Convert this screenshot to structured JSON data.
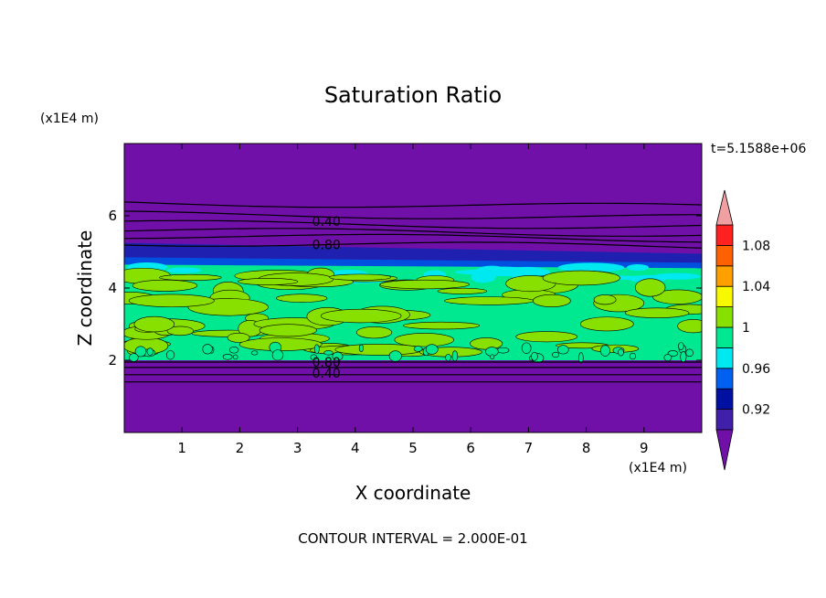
{
  "chart_data": {
    "type": "heatmap",
    "title": "Saturation Ratio",
    "xlabel": "X coordinate",
    "ylabel": "Z coordinate",
    "x_unit": "(x1E4 m)",
    "y_unit": "(x1E4 m)",
    "time_label": "t=5.1588e+06",
    "footer": "CONTOUR INTERVAL = 2.000E-01",
    "xlim": [
      0,
      10
    ],
    "ylim": [
      0,
      8
    ],
    "x_ticks": [
      1,
      2,
      3,
      4,
      5,
      6,
      7,
      8,
      9
    ],
    "y_ticks": [
      2,
      4,
      6
    ],
    "contour_labels": [
      {
        "text": "0.40",
        "x": 3.5,
        "y": 5.85
      },
      {
        "text": "0.80",
        "x": 3.5,
        "y": 5.2
      },
      {
        "text": "0.80",
        "x": 3.5,
        "y": 1.95
      },
      {
        "text": "0.40",
        "x": 3.5,
        "y": 1.65
      }
    ],
    "contour_lines_z": [
      1.4,
      1.6,
      1.8,
      1.95,
      5.25,
      5.45,
      5.6,
      5.8,
      6.05,
      6.35
    ],
    "colorbar": {
      "levels": [
        0.9,
        0.92,
        0.94,
        0.96,
        0.98,
        1.0,
        1.02,
        1.04,
        1.06,
        1.08,
        1.1
      ],
      "tick_labels": [
        "0.92",
        "0.96",
        "1",
        "1.04",
        "1.08"
      ],
      "tick_values": [
        0.92,
        0.96,
        1.0,
        1.04,
        1.08
      ],
      "colors": [
        "#4020a8",
        "#0010a0",
        "#0060f0",
        "#00e8f0",
        "#00e890",
        "#88e000",
        "#f8f800",
        "#ffa000",
        "#ff6000",
        "#ff2020"
      ],
      "under_color": "#7010a8",
      "over_color": "#f0a0a0"
    },
    "palette": {
      "background_field": "#7010a8",
      "dark_blue": "#2020b0",
      "blue": "#0050e0",
      "cyan": "#00e8f0",
      "green": "#00e890",
      "yellow_green": "#88e000"
    }
  }
}
